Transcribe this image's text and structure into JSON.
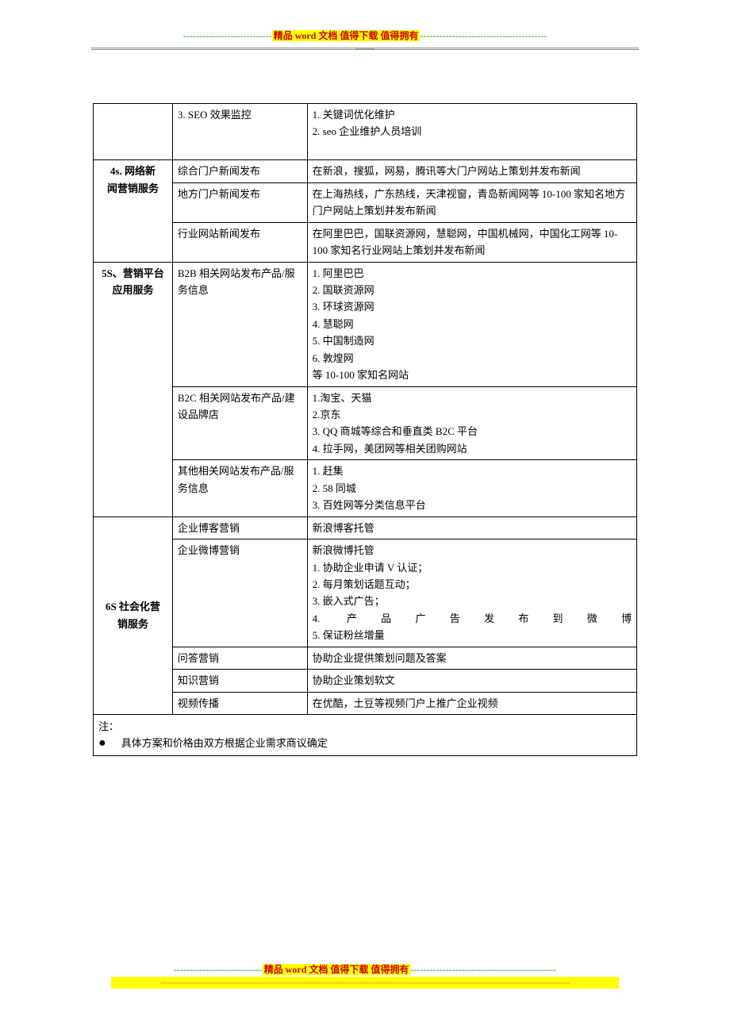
{
  "header": {
    "dashes_left": "----------------------------",
    "highlight_text": "精品 word 文档  值得下载  值得拥有",
    "dashes_right": "----------------------------------------------"
  },
  "footer": {
    "dashes_left": "----------------------------",
    "highlight_text": "精品 word 文档  值得下载  值得拥有",
    "dashes_right": "----------------------------------------------",
    "line2_dashes": "---------------------------------------------------------------------------------------------------------------------------------"
  },
  "table": {
    "row1": {
      "col1": "",
      "col2": "3. SEO 效果监控",
      "col3_line1": "1. 关键词优化维护",
      "col3_line2": "2. seo 企业维护人员培训"
    },
    "section_4s": {
      "title_line1": "4s. 网络新",
      "title_line2": "闻营销服务",
      "r1_col2": "综合门户新闻发布",
      "r1_col3": "在新浪，搜狐，网易，腾讯等大门户网站上策划并发布新闻",
      "r2_col2": "地方门户新闻发布",
      "r2_col3": "在上海热线，广东热线，天津视窗，青岛新闻网等 10-100 家知名地方门户网站上策划并发布新闻",
      "r3_col2": "行业网站新闻发布",
      "r3_col3": "在阿里巴巴，国联资源网，慧聪网，中国机械网，中国化工网等 10-100 家知名行业网站上策划并发布新闻"
    },
    "section_5s": {
      "title_line1": "5S、营销平台",
      "title_line2": "应用服务",
      "r1_col2": "B2B 相关网站发布产品/服务信息",
      "r1_col3_l1": "1. 阿里巴巴",
      "r1_col3_l2": "2. 国联资源网",
      "r1_col3_l3": "3. 环球资源网",
      "r1_col3_l4": "4. 慧聪网",
      "r1_col3_l5": "5. 中国制造网",
      "r1_col3_l6": "6. 敦煌网",
      "r1_col3_l7": "等 10-100 家知名网站",
      "r2_col2": "B2C 相关网站发布产品/建设品牌店",
      "r2_col3_l1": "1.淘宝、天猫",
      "r2_col3_l2": "2.京东",
      "r2_col3_l3": "3. QQ 商城等综合和垂直类 B2C 平台",
      "r2_col3_l4": "4. 拉手网，美团网等相关团购网站",
      "r3_col2": "其他相关网站发布产品/服务信息",
      "r3_col3_l1": "1. 赶集",
      "r3_col3_l2": "2. 58 同城",
      "r3_col3_l3": "3. 百姓网等分类信息平台"
    },
    "section_6s": {
      "title_line1": "6S 社会化营",
      "title_line2": "销服务",
      "r1_col2": "企业博客营销",
      "r1_col3": "新浪博客托管",
      "r2_col2": "企业微博营销",
      "r2_col3_l1": "新浪微博托管",
      "r2_col3_l2": "1. 协助企业申请 V 认证；",
      "r2_col3_l3": "2. 每月策划话题互动；",
      "r2_col3_l4": "3. 嵌入式广告；",
      "r2_col3_l5": "4. 产品广告发布到微博",
      "r2_col3_l6": "5. 保证粉丝增量",
      "r3_col2": "问答营销",
      "r3_col3": "协助企业提供策划问题及答案",
      "r4_col2": "知识营销",
      "r4_col3": "协助企业策划软文",
      "r5_col2": "视频传播",
      "r5_col3": "在优酷，土豆等视频门户上推广企业视频"
    },
    "note": {
      "line1": "注：",
      "line2": "具体方案和价格由双方根据企业需求商议确定"
    }
  }
}
